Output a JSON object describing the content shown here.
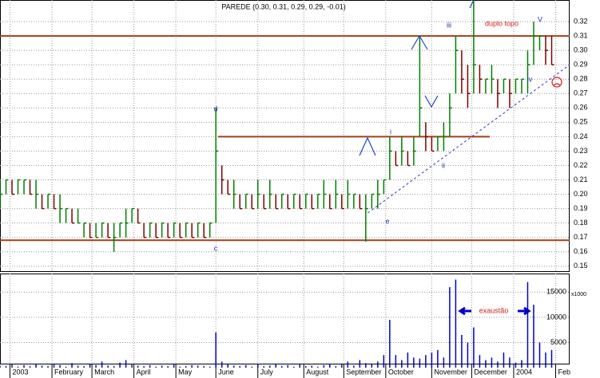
{
  "chart_data": [
    {
      "type": "ohlc",
      "title": "PAREDE (0.30, 0.31, 0.29, 0.29, -0.01)",
      "x": [
        0,
        3,
        6,
        9,
        12,
        15,
        18,
        21,
        24,
        27,
        30,
        33,
        36,
        39,
        42,
        45,
        48,
        51,
        54,
        57,
        60,
        63,
        66,
        69,
        72,
        75,
        78,
        81,
        84,
        87,
        90,
        93,
        96,
        99,
        102,
        105,
        108,
        111,
        114,
        117,
        120,
        123,
        126,
        129,
        132,
        135,
        138,
        141,
        144,
        147,
        150,
        153,
        156,
        159,
        162,
        165,
        168,
        171,
        174,
        177,
        180,
        183,
        186,
        189,
        192,
        195,
        198,
        201,
        204,
        207,
        210,
        213,
        216,
        219,
        222,
        225,
        228,
        231,
        234,
        237,
        240,
        243,
        246,
        249,
        252,
        255,
        258,
        261,
        264,
        267,
        270,
        273,
        276
      ],
      "high": [
        0.21,
        0.21,
        0.21,
        0.21,
        0.21,
        0.21,
        0.21,
        0.2,
        0.2,
        0.2,
        0.2,
        0.19,
        0.19,
        0.19,
        0.18,
        0.18,
        0.18,
        0.18,
        0.18,
        0.18,
        0.18,
        0.19,
        0.19,
        0.19,
        0.18,
        0.18,
        0.18,
        0.18,
        0.18,
        0.18,
        0.18,
        0.18,
        0.18,
        0.18,
        0.18,
        0.18,
        0.26,
        0.22,
        0.21,
        0.21,
        0.2,
        0.2,
        0.2,
        0.21,
        0.2,
        0.21,
        0.2,
        0.2,
        0.2,
        0.2,
        0.2,
        0.2,
        0.2,
        0.2,
        0.21,
        0.2,
        0.21,
        0.2,
        0.21,
        0.2,
        0.2,
        0.2,
        0.2,
        0.21,
        0.21,
        0.24,
        0.23,
        0.24,
        0.23,
        0.24,
        0.31,
        0.25,
        0.24,
        0.24,
        0.25,
        0.27,
        0.31,
        0.3,
        0.29,
        0.335,
        0.29,
        0.28,
        0.29,
        0.28,
        0.28,
        0.28,
        0.28,
        0.28,
        0.3,
        0.32,
        0.31,
        0.31,
        0.31
      ],
      "low": [
        0.19,
        0.2,
        0.2,
        0.2,
        0.2,
        0.2,
        0.19,
        0.19,
        0.19,
        0.19,
        0.18,
        0.18,
        0.18,
        0.18,
        0.17,
        0.17,
        0.17,
        0.17,
        0.17,
        0.16,
        0.17,
        0.17,
        0.18,
        0.18,
        0.17,
        0.17,
        0.17,
        0.17,
        0.17,
        0.17,
        0.17,
        0.17,
        0.17,
        0.17,
        0.17,
        0.17,
        0.18,
        0.2,
        0.2,
        0.19,
        0.19,
        0.19,
        0.19,
        0.19,
        0.19,
        0.19,
        0.19,
        0.19,
        0.19,
        0.19,
        0.19,
        0.19,
        0.19,
        0.19,
        0.19,
        0.19,
        0.19,
        0.19,
        0.19,
        0.19,
        0.19,
        0.167,
        0.19,
        0.19,
        0.2,
        0.21,
        0.22,
        0.22,
        0.22,
        0.22,
        0.24,
        0.23,
        0.23,
        0.23,
        0.23,
        0.24,
        0.27,
        0.27,
        0.26,
        0.27,
        0.27,
        0.27,
        0.27,
        0.26,
        0.27,
        0.26,
        0.27,
        0.27,
        0.27,
        0.29,
        0.3,
        0.29,
        0.29
      ],
      "close": [
        0.2,
        0.21,
        0.2,
        0.21,
        0.21,
        0.2,
        0.2,
        0.19,
        0.2,
        0.19,
        0.19,
        0.19,
        0.18,
        0.18,
        0.18,
        0.17,
        0.17,
        0.18,
        0.17,
        0.17,
        0.18,
        0.18,
        0.19,
        0.18,
        0.17,
        0.18,
        0.17,
        0.18,
        0.17,
        0.18,
        0.17,
        0.18,
        0.17,
        0.18,
        0.17,
        0.18,
        0.23,
        0.21,
        0.2,
        0.2,
        0.19,
        0.2,
        0.19,
        0.2,
        0.19,
        0.2,
        0.19,
        0.2,
        0.19,
        0.2,
        0.19,
        0.2,
        0.19,
        0.2,
        0.2,
        0.19,
        0.2,
        0.19,
        0.2,
        0.2,
        0.19,
        0.19,
        0.2,
        0.2,
        0.21,
        0.23,
        0.22,
        0.23,
        0.22,
        0.23,
        0.26,
        0.24,
        0.23,
        0.24,
        0.24,
        0.26,
        0.3,
        0.28,
        0.27,
        0.29,
        0.28,
        0.28,
        0.28,
        0.27,
        0.28,
        0.27,
        0.28,
        0.28,
        0.29,
        0.31,
        0.31,
        0.3,
        0.29
      ],
      "up_color": "#008000",
      "down_color": "#800000",
      "xlim": [
        0,
        285
      ],
      "ylim": [
        0.146,
        0.335
      ],
      "yticks": [
        0.15,
        0.16,
        0.17,
        0.18,
        0.19,
        {
          "value": 0.2,
          "label": "0.20"
        },
        0.21,
        0.22,
        0.23,
        0.24,
        0.25,
        0.26,
        0.27,
        0.28,
        0.29,
        {
          "value": 0.3,
          "label": "0.30"
        },
        0.31,
        0.32
      ],
      "levels": [
        {
          "value": 0.31,
          "x": [
            0,
            285
          ],
          "color": "#a0401a"
        },
        {
          "value": 0.24,
          "x": [
            109,
            245
          ],
          "color": "#a0401a"
        },
        {
          "value": 0.168,
          "x": [
            0,
            285
          ],
          "color": "#a0401a"
        }
      ],
      "trendline": {
        "x": [
          184,
          285
        ],
        "y": [
          0.187,
          0.29
        ],
        "color": "#3333cc"
      },
      "annotations": [
        "d",
        "c",
        "e",
        "i",
        "ii",
        "iii",
        "iv",
        "V",
        "duplo topo"
      ],
      "grid": true
    },
    {
      "type": "volume",
      "x": [
        0,
        3,
        6,
        9,
        12,
        15,
        18,
        21,
        24,
        27,
        30,
        33,
        36,
        39,
        42,
        45,
        48,
        51,
        54,
        57,
        60,
        63,
        66,
        69,
        72,
        75,
        78,
        81,
        84,
        87,
        90,
        93,
        96,
        99,
        102,
        105,
        108,
        111,
        114,
        117,
        120,
        123,
        126,
        129,
        132,
        135,
        138,
        141,
        144,
        147,
        150,
        153,
        156,
        159,
        162,
        165,
        168,
        171,
        174,
        177,
        180,
        183,
        186,
        189,
        192,
        195,
        198,
        201,
        204,
        207,
        210,
        213,
        216,
        219,
        222,
        225,
        228,
        231,
        234,
        237,
        240,
        243,
        246,
        249,
        252,
        255,
        258,
        261,
        264,
        267,
        270,
        273,
        276
      ],
      "values": [
        400,
        300,
        600,
        200,
        500,
        300,
        800,
        400,
        300,
        600,
        500,
        200,
        900,
        400,
        300,
        700,
        500,
        1200,
        400,
        300,
        1000,
        1500,
        600,
        400,
        300,
        500,
        200,
        400,
        300,
        600,
        200,
        300,
        500,
        400,
        300,
        200,
        7000,
        1200,
        800,
        400,
        300,
        500,
        200,
        600,
        300,
        400,
        700,
        300,
        500,
        200,
        600,
        300,
        400,
        200,
        500,
        800,
        300,
        600,
        1200,
        400,
        1500,
        900,
        700,
        1200,
        2500,
        9500,
        2500,
        1500,
        3000,
        2000,
        1800,
        2500,
        3000,
        3500,
        2000,
        16000,
        17500,
        6500,
        5000,
        8000,
        2500,
        1500,
        2000,
        1200,
        3000,
        2000,
        1000,
        1500,
        17000,
        12500,
        5000,
        3000,
        3500
      ],
      "color": "#0000cc",
      "xlim": [
        0,
        285
      ],
      "ylim": [
        0,
        18700
      ],
      "yticks": [
        5000,
        10000,
        15000
      ],
      "unit_label": "x1000",
      "xticks": [
        {
          "value": 5,
          "label": "2003"
        },
        {
          "value": 26,
          "label": "February"
        },
        {
          "value": 46,
          "label": "March"
        },
        {
          "value": 67,
          "label": "April"
        },
        {
          "value": 88,
          "label": "May"
        },
        {
          "value": 108,
          "label": "June"
        },
        {
          "value": 129,
          "label": "July"
        },
        {
          "value": 152,
          "label": "August"
        },
        {
          "value": 172,
          "label": "September"
        },
        {
          "value": 193,
          "label": "October"
        },
        {
          "value": 216,
          "label": "November"
        },
        {
          "value": 236,
          "label": "December"
        },
        {
          "value": 257,
          "label": "2004"
        },
        {
          "value": 278,
          "label": "Feb"
        }
      ],
      "annotations": [
        "exaustão"
      ],
      "grid": true
    }
  ]
}
